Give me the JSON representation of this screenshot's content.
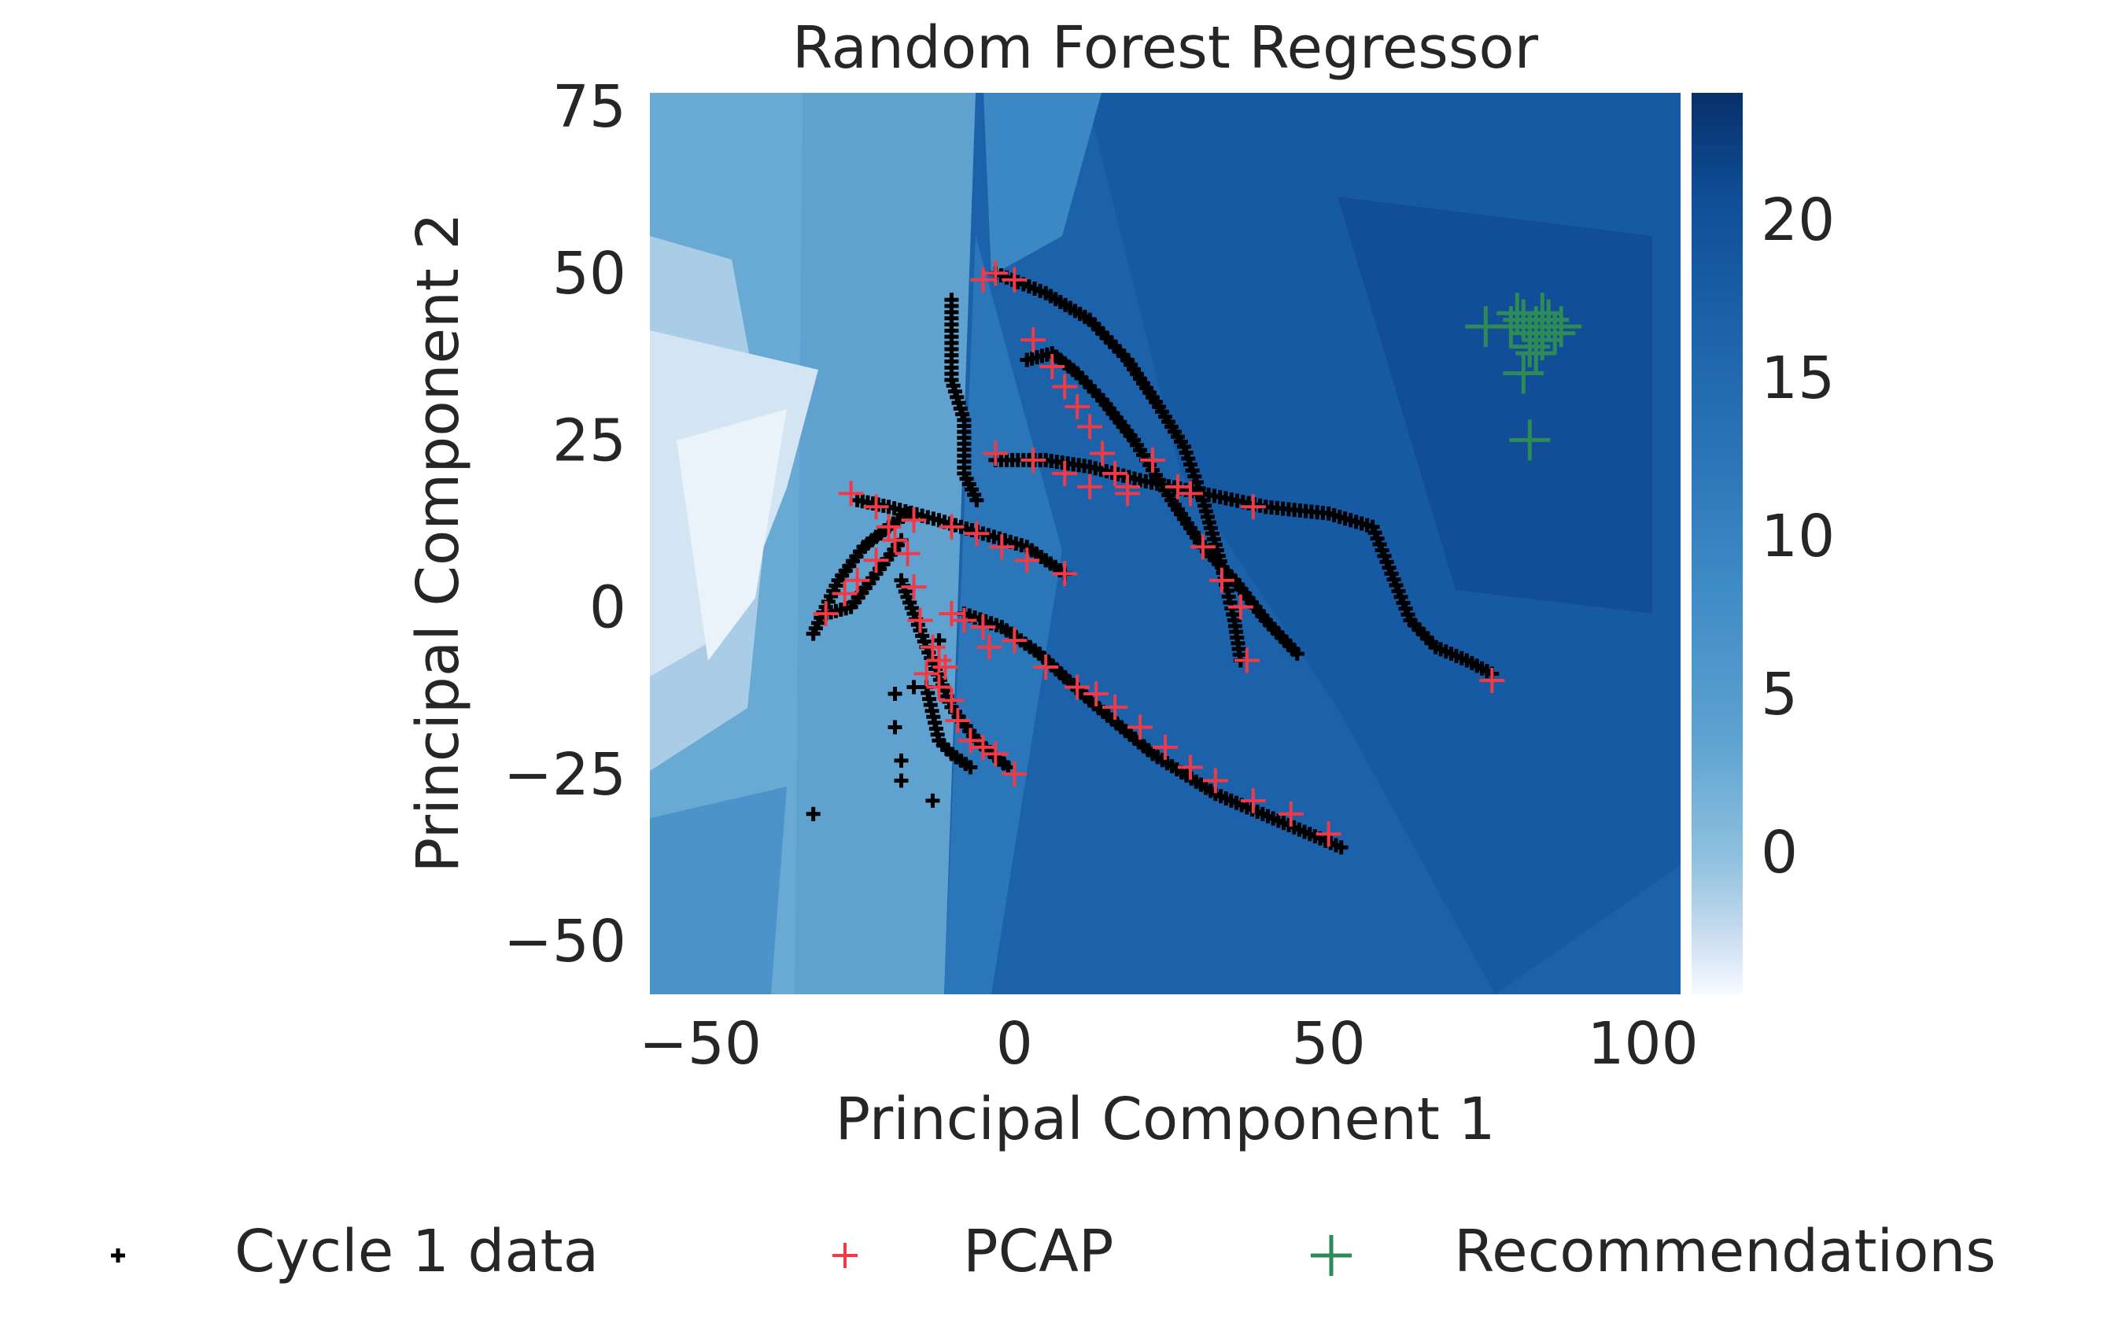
{
  "chart_data": {
    "type": "scatter",
    "title": "Random Forest Regressor",
    "xlabel": "Principal Component 1",
    "ylabel": "Principal Component 2",
    "xlim": [
      -58,
      106
    ],
    "ylim": [
      -58,
      77
    ],
    "xticks": [
      -50,
      0,
      50,
      100
    ],
    "yticks": [
      -50,
      -25,
      0,
      25,
      50,
      75
    ],
    "xtick_labels": [
      "−50",
      "0",
      "50",
      "100"
    ],
    "ytick_labels": [
      "−50",
      "−25",
      "0",
      "25",
      "50",
      "75"
    ],
    "grid": false,
    "legend_placement": "bottom",
    "background": "prediction heatmap (Blues colormap)",
    "colorbar": {
      "cmap": "Blues",
      "range": [
        -4.5,
        24
      ],
      "ticks": [
        0,
        5,
        10,
        15,
        20
      ],
      "tick_labels": [
        "0",
        "5",
        "10",
        "15",
        "20"
      ]
    },
    "series": [
      {
        "name": "Cycle 1 data",
        "marker": "+",
        "color": "#000000",
        "size": "small",
        "curves": [
          [
            [
              -3,
              50
            ],
            [
              5,
              47
            ],
            [
              12,
              43
            ],
            [
              18,
              37
            ],
            [
              23,
              30
            ],
            [
              27,
              24
            ],
            [
              30,
              16
            ],
            [
              33,
              6
            ],
            [
              35,
              -2
            ],
            [
              36,
              -8
            ]
          ],
          [
            [
              2,
              37
            ],
            [
              6,
              38
            ],
            [
              10,
              35
            ],
            [
              14,
              31
            ],
            [
              19,
              25
            ],
            [
              25,
              16
            ],
            [
              30,
              9
            ],
            [
              35,
              4
            ],
            [
              40,
              -2
            ],
            [
              45,
              -7
            ]
          ],
          [
            [
              -3,
              22
            ],
            [
              5,
              22
            ],
            [
              12,
              21
            ],
            [
              20,
              19
            ],
            [
              30,
              17
            ],
            [
              40,
              15
            ],
            [
              50,
              14
            ],
            [
              57,
              12
            ],
            [
              60,
              5
            ],
            [
              63,
              -2
            ],
            [
              67,
              -6
            ],
            [
              72,
              -8
            ],
            [
              76,
              -10
            ]
          ],
          [
            [
              -25,
              16
            ],
            [
              -20,
              15
            ],
            [
              -12,
              13
            ],
            [
              -5,
              11
            ],
            [
              2,
              9
            ],
            [
              8,
              5
            ]
          ],
          [
            [
              -32,
              -4
            ],
            [
              -28,
              4
            ],
            [
              -24,
              9
            ],
            [
              -20,
              12
            ],
            [
              -17,
              14
            ]
          ],
          [
            [
              -30,
              -1
            ],
            [
              -26,
              0
            ],
            [
              -22,
              5
            ],
            [
              -18,
              10
            ]
          ],
          [
            [
              -18,
              4
            ],
            [
              -14,
              -6
            ],
            [
              -10,
              -15
            ],
            [
              -6,
              -20
            ],
            [
              -1,
              -24
            ]
          ],
          [
            [
              -8,
              -1
            ],
            [
              -2,
              -3
            ],
            [
              4,
              -7
            ],
            [
              12,
              -14
            ],
            [
              22,
              -22
            ],
            [
              32,
              -28
            ],
            [
              42,
              -32
            ],
            [
              52,
              -36
            ]
          ],
          [
            [
              -14,
              -12
            ],
            [
              -12,
              -20
            ],
            [
              -10,
              -22
            ],
            [
              -7,
              -24
            ]
          ],
          [
            [
              -10,
              46
            ],
            [
              -10,
              34
            ],
            [
              -8,
              28
            ],
            [
              -8,
              20
            ],
            [
              -6,
              16
            ]
          ]
        ],
        "points": [
          [
            -32,
            -31
          ],
          [
            -13,
            -29
          ],
          [
            -18,
            -26
          ],
          [
            -18,
            -23
          ],
          [
            -19,
            -18
          ],
          [
            -19,
            -13
          ],
          [
            -12,
            -5
          ],
          [
            -16,
            -12
          ]
        ]
      },
      {
        "name": "PCAP",
        "marker": "+",
        "color": "#f03a47",
        "size": "medium",
        "points": [
          [
            -5,
            49
          ],
          [
            -3,
            50
          ],
          [
            0,
            49
          ],
          [
            3,
            40
          ],
          [
            6,
            36
          ],
          [
            8,
            33
          ],
          [
            10,
            30
          ],
          [
            12,
            27
          ],
          [
            14,
            23
          ],
          [
            16,
            20
          ],
          [
            18,
            18
          ],
          [
            22,
            22
          ],
          [
            26,
            18
          ],
          [
            30,
            9
          ],
          [
            33,
            4
          ],
          [
            36,
            0
          ],
          [
            37,
            -8
          ],
          [
            -3,
            23
          ],
          [
            3,
            22
          ],
          [
            8,
            20
          ],
          [
            12,
            18
          ],
          [
            18,
            17
          ],
          [
            28,
            17
          ],
          [
            38,
            15
          ],
          [
            76,
            -11
          ],
          [
            -26,
            17
          ],
          [
            -22,
            15
          ],
          [
            -16,
            13
          ],
          [
            -10,
            12
          ],
          [
            -6,
            11
          ],
          [
            -2,
            9
          ],
          [
            2,
            7
          ],
          [
            8,
            5
          ],
          [
            -30,
            -1
          ],
          [
            -27,
            2
          ],
          [
            -25,
            4
          ],
          [
            -22,
            7
          ],
          [
            -19,
            10
          ],
          [
            -17,
            8
          ],
          [
            -16,
            3
          ],
          [
            -15,
            -2
          ],
          [
            -13,
            -6
          ],
          [
            -11,
            -9
          ],
          [
            -10,
            -14
          ],
          [
            -9,
            -17
          ],
          [
            -7,
            -20
          ],
          [
            -5,
            -21
          ],
          [
            -3,
            -22
          ],
          [
            0,
            -25
          ],
          [
            -10,
            -1
          ],
          [
            -8,
            -2
          ],
          [
            -5,
            -3
          ],
          [
            0,
            -5
          ],
          [
            -4,
            -6
          ],
          [
            -12,
            -8
          ],
          [
            5,
            -9
          ],
          [
            10,
            -12
          ],
          [
            13,
            -13
          ],
          [
            16,
            -15
          ],
          [
            20,
            -18
          ],
          [
            24,
            -21
          ],
          [
            28,
            -24
          ],
          [
            32,
            -26
          ],
          [
            38,
            -29
          ],
          [
            44,
            -31
          ],
          [
            50,
            -34
          ],
          [
            -20,
            12
          ],
          [
            -14,
            -10
          ],
          [
            -12,
            -12
          ]
        ]
      },
      {
        "name": "Recommendations",
        "marker": "+",
        "color": "#2e8b57",
        "size": "large",
        "points": [
          [
            75,
            42
          ],
          [
            79,
            42
          ],
          [
            81,
            43
          ],
          [
            82,
            41
          ],
          [
            83,
            42
          ],
          [
            84,
            40
          ],
          [
            85,
            43
          ],
          [
            86,
            41
          ],
          [
            82,
            39
          ],
          [
            81,
            35
          ],
          [
            83,
            38
          ],
          [
            82,
            25
          ],
          [
            80,
            44
          ],
          [
            84,
            44
          ],
          [
            87,
            42
          ]
        ]
      }
    ]
  }
}
